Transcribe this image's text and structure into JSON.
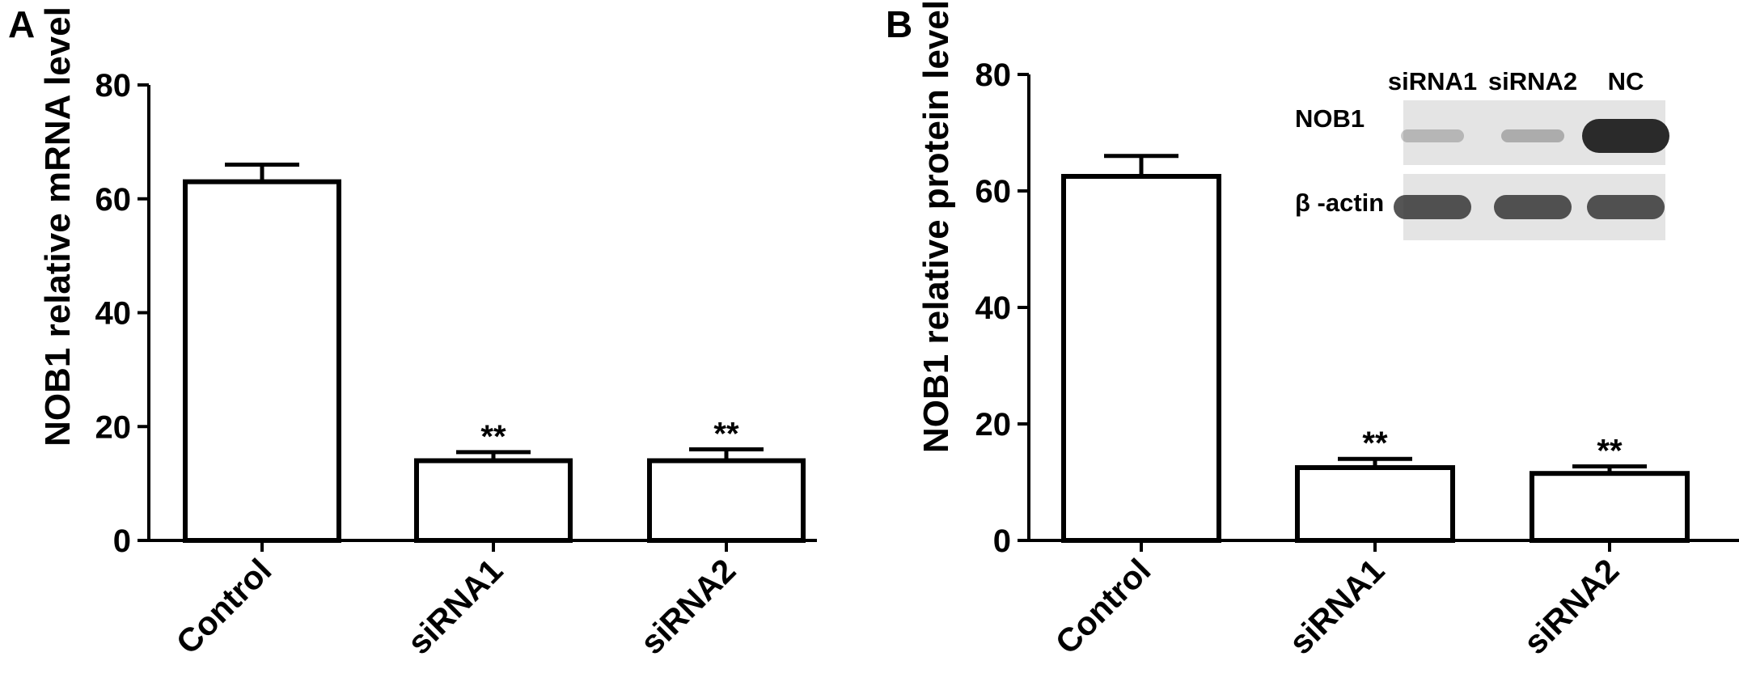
{
  "figure": {
    "panels": [
      "A",
      "B"
    ]
  },
  "chart_data": [
    {
      "panel": "A",
      "type": "bar",
      "title": "",
      "xlabel": "",
      "ylabel": "NOB1 relative mRNA level",
      "categories": [
        "Control",
        "siRNA1",
        "siRNA2"
      ],
      "values": [
        63,
        14,
        14
      ],
      "errors": [
        3,
        1.5,
        2
      ],
      "significance": [
        "",
        "**",
        "**"
      ],
      "ylim": [
        0,
        80
      ],
      "yticks": [
        0,
        20,
        40,
        60,
        80
      ],
      "grid": false,
      "bar_color": "#ffffff",
      "edge_color": "#000000"
    },
    {
      "panel": "B",
      "type": "bar",
      "title": "",
      "xlabel": "",
      "ylabel": "NOB1 relative protein level",
      "categories": [
        "Control",
        "siRNA1",
        "siRNA2"
      ],
      "values": [
        62.5,
        12.5,
        11.5
      ],
      "errors": [
        3.5,
        1.5,
        1.2
      ],
      "significance": [
        "",
        "**",
        "**"
      ],
      "ylim": [
        0,
        80
      ],
      "yticks": [
        0,
        20,
        40,
        60,
        80
      ],
      "grid": false,
      "bar_color": "#ffffff",
      "edge_color": "#000000"
    }
  ],
  "inset_blot": {
    "lanes": [
      "siRNA1",
      "siRNA2",
      "NC"
    ],
    "rows": [
      {
        "label": "NOB1",
        "band_intensity": [
          0.25,
          0.3,
          1.0
        ]
      },
      {
        "label": "β -actin",
        "band_intensity": [
          0.8,
          0.8,
          0.8
        ]
      }
    ],
    "background_color": "#e4e4e4",
    "band_color": "#2a2a2a"
  }
}
